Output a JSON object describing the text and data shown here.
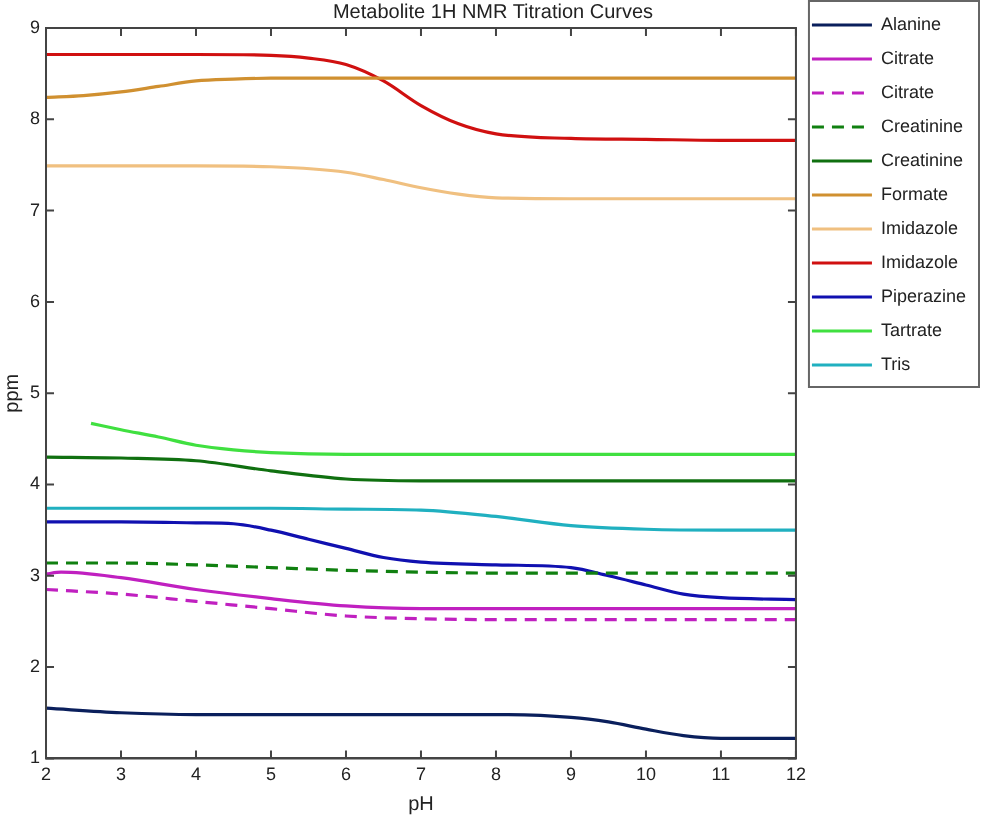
{
  "chart_data": {
    "type": "line",
    "title": "Metabolite 1H NMR Titration Curves",
    "xlabel": "pH",
    "ylabel": "ppm",
    "xlim": [
      2,
      12
    ],
    "ylim": [
      1,
      9
    ],
    "xticks": [
      2,
      3,
      4,
      5,
      6,
      7,
      8,
      9,
      10,
      11,
      12
    ],
    "yticks": [
      1,
      2,
      3,
      4,
      5,
      6,
      7,
      8,
      9
    ],
    "grid": false,
    "legend": "right",
    "marker": "none",
    "series": [
      {
        "name": "Alanine",
        "color": "#0a1f5c",
        "x": [
          2,
          3,
          4,
          5,
          6,
          7,
          8,
          9,
          9.5,
          10,
          10.5,
          11,
          12
        ],
        "values": [
          1.55,
          1.5,
          1.48,
          1.48,
          1.48,
          1.48,
          1.48,
          1.45,
          1.4,
          1.32,
          1.25,
          1.22,
          1.22
        ]
      },
      {
        "name": "Citrate",
        "color": "#c020c0",
        "x": [
          2,
          2.2,
          3,
          4,
          5,
          6,
          7,
          8,
          9,
          10,
          11,
          12
        ],
        "values": [
          3.02,
          3.04,
          2.98,
          2.85,
          2.75,
          2.67,
          2.64,
          2.64,
          2.64,
          2.64,
          2.64,
          2.64
        ]
      },
      {
        "name": "Citrate",
        "color": "#c020c0",
        "line_style": "dashed",
        "x": [
          2,
          3,
          4,
          5,
          6,
          7,
          8,
          9,
          10,
          11,
          12
        ],
        "values": [
          2.85,
          2.8,
          2.72,
          2.64,
          2.56,
          2.53,
          2.52,
          2.52,
          2.52,
          2.52,
          2.52
        ]
      },
      {
        "name": "Creatinine",
        "color": "#108010",
        "line_style": "dashed",
        "x": [
          2,
          3,
          4,
          5,
          6,
          7,
          8,
          9,
          10,
          11,
          12
        ],
        "values": [
          3.14,
          3.14,
          3.12,
          3.09,
          3.06,
          3.04,
          3.03,
          3.03,
          3.03,
          3.03,
          3.03
        ]
      },
      {
        "name": "Creatinine",
        "color": "#107010",
        "x": [
          2,
          3,
          4,
          5,
          6,
          7,
          8,
          9,
          10,
          11,
          12
        ],
        "values": [
          4.3,
          4.29,
          4.26,
          4.15,
          4.06,
          4.04,
          4.04,
          4.04,
          4.04,
          4.04,
          4.04
        ]
      },
      {
        "name": "Formate",
        "color": "#d09030",
        "x": [
          2,
          2.5,
          3,
          3.5,
          4,
          4.5,
          5,
          6,
          7,
          8,
          9,
          10,
          11,
          12
        ],
        "values": [
          8.24,
          8.26,
          8.3,
          8.36,
          8.42,
          8.44,
          8.45,
          8.45,
          8.45,
          8.45,
          8.45,
          8.45,
          8.45,
          8.45
        ]
      },
      {
        "name": "Imidazole",
        "color": "#f0c080",
        "x": [
          2,
          3,
          4,
          5,
          6,
          6.5,
          7,
          7.5,
          8,
          9,
          10,
          11,
          12
        ],
        "values": [
          7.49,
          7.49,
          7.49,
          7.48,
          7.42,
          7.34,
          7.25,
          7.18,
          7.14,
          7.13,
          7.13,
          7.13,
          7.13
        ]
      },
      {
        "name": "Imidazole",
        "color": "#d01010",
        "x": [
          2,
          3,
          4,
          5,
          5.5,
          6,
          6.5,
          7,
          7.5,
          8,
          9,
          10,
          11,
          12
        ],
        "values": [
          8.71,
          8.71,
          8.71,
          8.7,
          8.67,
          8.6,
          8.42,
          8.15,
          7.95,
          7.84,
          7.79,
          7.78,
          7.77,
          7.77
        ]
      },
      {
        "name": "Piperazine",
        "color": "#1010b0",
        "x": [
          2,
          3,
          4,
          4.5,
          5,
          5.5,
          6,
          6.5,
          7,
          8,
          9,
          9.5,
          10,
          10.5,
          11,
          12
        ],
        "values": [
          3.59,
          3.59,
          3.58,
          3.57,
          3.5,
          3.4,
          3.3,
          3.2,
          3.15,
          3.12,
          3.09,
          3.0,
          2.9,
          2.8,
          2.76,
          2.74
        ]
      },
      {
        "name": "Tartrate",
        "color": "#40e040",
        "x": [
          2.6,
          3,
          3.5,
          4,
          4.5,
          5,
          6,
          7,
          8,
          9,
          10,
          11,
          12
        ],
        "values": [
          4.67,
          4.6,
          4.52,
          4.43,
          4.38,
          4.35,
          4.33,
          4.33,
          4.33,
          4.33,
          4.33,
          4.33,
          4.33
        ]
      },
      {
        "name": "Tris",
        "color": "#20b0c0",
        "x": [
          2,
          3,
          4,
          5,
          6,
          7,
          8,
          9,
          10,
          11,
          12
        ],
        "values": [
          3.74,
          3.74,
          3.74,
          3.74,
          3.73,
          3.72,
          3.65,
          3.55,
          3.51,
          3.5,
          3.5
        ]
      }
    ]
  }
}
